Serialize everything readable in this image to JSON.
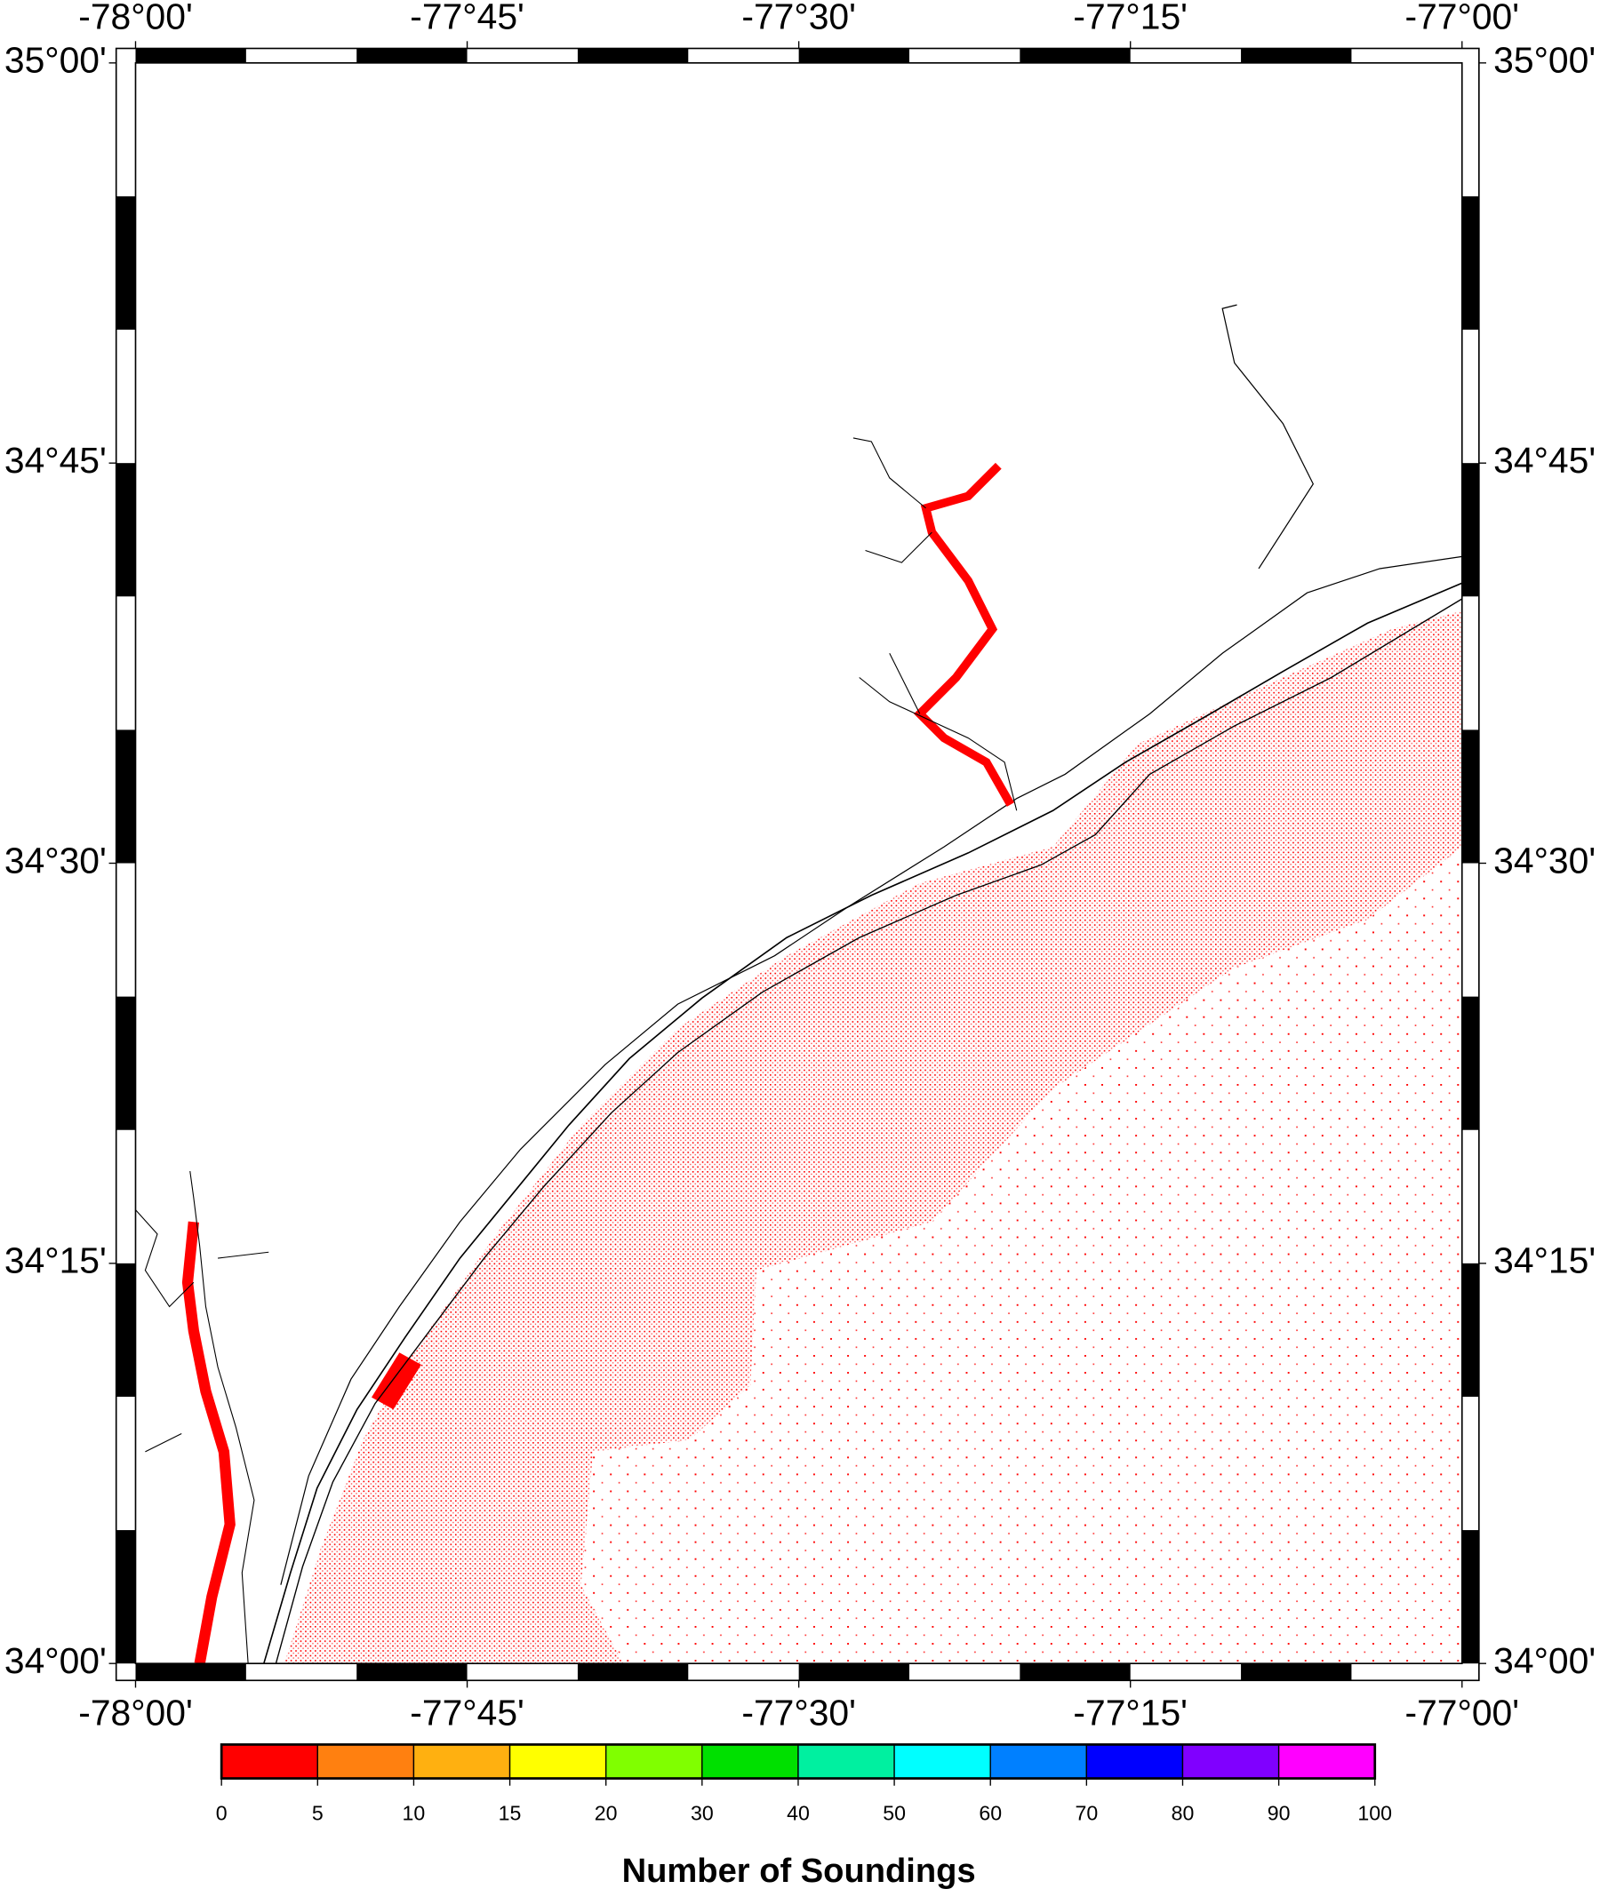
{
  "map": {
    "lon_range": [
      -78,
      -77
    ],
    "lat_range": [
      34,
      35
    ],
    "lon_ticks": [
      {
        "value": -78,
        "label": "-78°00'"
      },
      {
        "value": -77.75,
        "label": "-77°45'"
      },
      {
        "value": -77.5,
        "label": "-77°30'"
      },
      {
        "value": -77.25,
        "label": "-77°15'"
      },
      {
        "value": -77,
        "label": "-77°00'"
      }
    ],
    "lat_ticks": [
      {
        "value": 34,
        "label": "34°00'"
      },
      {
        "value": 34.25,
        "label": "34°15'"
      },
      {
        "value": 34.5,
        "label": "34°30'"
      },
      {
        "value": 34.75,
        "label": "34°45'"
      },
      {
        "value": 35,
        "label": "35°00'"
      }
    ],
    "colorbar": {
      "title": "Number of Soundings",
      "ticks": [
        0,
        5,
        10,
        15,
        20,
        30,
        40,
        50,
        60,
        70,
        80,
        90,
        100
      ],
      "colors": [
        "#ff0000",
        "#ff8010",
        "#ffb010",
        "#ffff00",
        "#80ff00",
        "#00e000",
        "#00f0a0",
        "#00ffff",
        "#0080ff",
        "#0000ff",
        "#8000ff",
        "#ff00ff"
      ]
    }
  }
}
